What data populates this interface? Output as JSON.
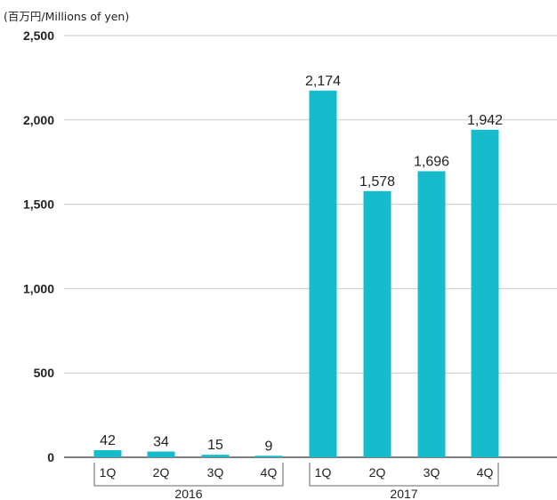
{
  "chart_data": {
    "type": "bar",
    "unit_label": "(百万円/Millions of yen)",
    "categories": [
      "1Q",
      "2Q",
      "3Q",
      "4Q",
      "1Q",
      "2Q",
      "3Q",
      "4Q"
    ],
    "groups": [
      {
        "label": "2016",
        "categories": [
          "1Q",
          "2Q",
          "3Q",
          "4Q"
        ]
      },
      {
        "label": "2017",
        "categories": [
          "1Q",
          "2Q",
          "3Q",
          "4Q"
        ]
      }
    ],
    "values": [
      42,
      34,
      15,
      9,
      2174,
      1578,
      1696,
      1942
    ],
    "data_labels": [
      "42",
      "34",
      "15",
      "9",
      "2,174",
      "1,578",
      "1,696",
      "1,942"
    ],
    "yticks": [
      0,
      500,
      1000,
      1500,
      2000,
      2500
    ],
    "ytick_labels": [
      "0",
      "500",
      "1,000",
      "1,500",
      "2,000",
      "2,500"
    ],
    "ylim": [
      0,
      2500
    ],
    "grid": true,
    "bar_color": "#16bccb",
    "grid_color": "#c8c8c8",
    "axis_color": "#333333"
  }
}
